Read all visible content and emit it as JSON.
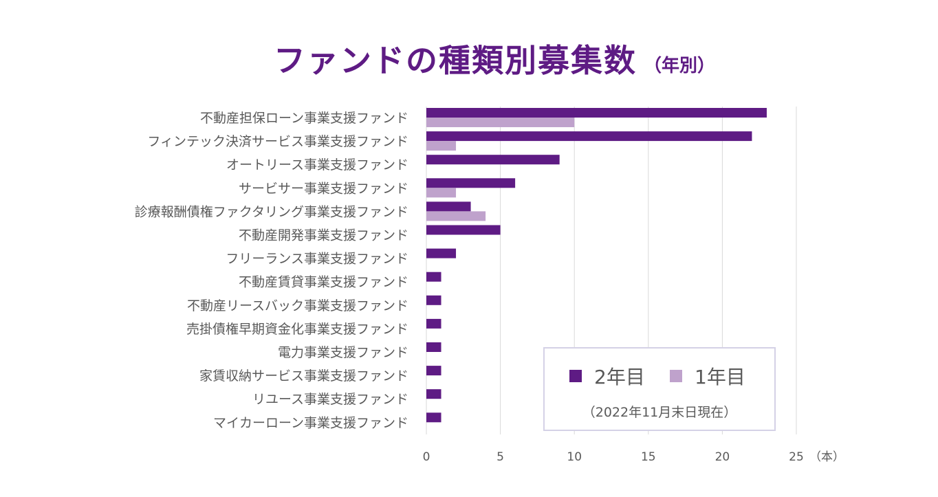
{
  "chart_data": {
    "type": "bar",
    "orientation": "horizontal",
    "title": "ファンドの種類別募集数",
    "subtitle": "（年別）",
    "xlabel": "",
    "unit_label": "（本）",
    "xlim": [
      0,
      25
    ],
    "xticks": [
      "0",
      "5",
      "10",
      "15",
      "20",
      "25"
    ],
    "grid": true,
    "categories": [
      "不動産担保ローン事業支援ファンド",
      "フィンテック決済サービス事業支援ファンド",
      "オートリース事業支援ファンド",
      "サービサー事業支援ファンド",
      "診療報酬債権ファクタリング事業支援ファンド",
      "不動産開発事業支援ファンド",
      "フリーランス事業支援ファンド",
      "不動産賃貸事業支援ファンド",
      "不動産リースバック事業支援ファンド",
      "売掛債権早期資金化事業支援ファンド",
      "電力事業支援ファンド",
      "家賃収納サービス事業支援ファンド",
      "リユース事業支援ファンド",
      "マイカーローン事業支援ファンド"
    ],
    "series": [
      {
        "name": "2年目",
        "color": "#5e1b84",
        "values": [
          23,
          22,
          9,
          6,
          3,
          5,
          2,
          1,
          1,
          1,
          1,
          1,
          1,
          1
        ]
      },
      {
        "name": "1年目",
        "color": "#bfa2cc",
        "values": [
          10,
          2,
          0,
          2,
          4,
          0,
          0,
          0,
          0,
          0,
          0,
          0,
          0,
          0
        ]
      }
    ],
    "legend": {
      "placement": "bottom-right",
      "note": "（2022年11月末日現在）"
    }
  }
}
